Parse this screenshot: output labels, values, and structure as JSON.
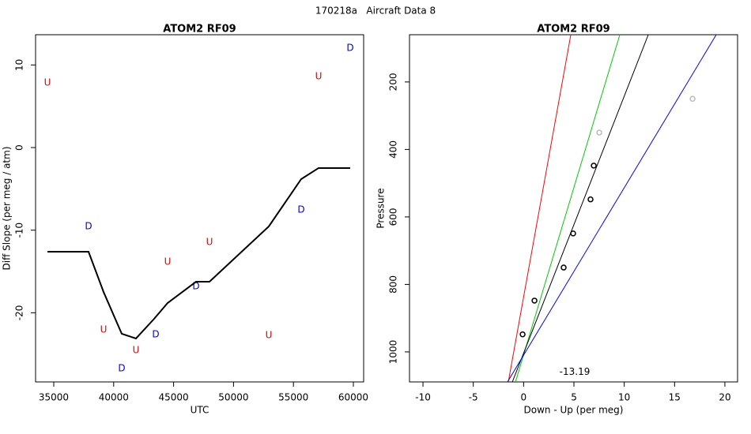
{
  "page_title": "170218a   Aircraft Data 8",
  "chart_data": [
    {
      "type": "scatter",
      "title": "ATOM2 RF09",
      "x_label": "UTC",
      "y_label": "Diff Slope (per meg / atm)",
      "xlim": [
        33483,
        60858
      ],
      "ylim": [
        -28.37,
        13.66
      ],
      "xticks": [
        35000,
        40000,
        45000,
        50000,
        55000,
        60000
      ],
      "yticks": [
        -20,
        -10,
        0,
        10
      ],
      "series": [
        {
          "mode": "text",
          "marker": "U",
          "color": "#e00000",
          "x": [
            34472,
            39156,
            41860,
            44499,
            47995,
            52942,
            57098
          ],
          "values": [
            7.83,
            -22.06,
            -24.55,
            -13.85,
            -11.46,
            -22.73,
            8.6
          ]
        },
        {
          "mode": "text",
          "marker": "D",
          "color": "#0000e0",
          "x": [
            37902,
            40673,
            43509,
            46873,
            55646,
            59736
          ],
          "values": [
            -9.55,
            -26.74,
            -22.64,
            -16.81,
            -7.55,
            12.03
          ]
        },
        {
          "mode": "line",
          "color": "#000000",
          "x": [
            34472,
            37902,
            39156,
            40673,
            41860,
            43377,
            44499,
            46873,
            47995,
            52942,
            55646,
            57098,
            59736
          ],
          "values": [
            -12.61,
            -12.61,
            -17.48,
            -22.54,
            -23.11,
            -20.73,
            -18.82,
            -16.24,
            -16.24,
            -9.55,
            -3.82,
            -2.48,
            -2.48
          ]
        }
      ]
    },
    {
      "type": "scatter",
      "title": "ATOM2 RF09",
      "x_label": "Down - Up (per meg)",
      "y_label": "Pressure",
      "xlim": [
        -11.34,
        21.26
      ],
      "ylim": [
        1089,
        60
      ],
      "xticks": [
        -10,
        -5,
        0,
        5,
        10,
        15,
        20
      ],
      "yticks": [
        200,
        400,
        600,
        800,
        1000
      ],
      "series": [
        {
          "mode": "points",
          "color": "#000000",
          "x": [
            -0.1,
            1.08,
            3.98,
            4.92,
            6.65,
            6.97
          ],
          "values": [
            948,
            848,
            750,
            649,
            548,
            448
          ]
        },
        {
          "mode": "points",
          "color": "#bbbbbb",
          "x": [
            7.52,
            16.79
          ],
          "values": [
            350,
            250
          ]
        },
        {
          "mode": "line",
          "color": "#ff0000",
          "x": [
            -1.52,
            4.69
          ],
          "values": [
            1089,
            60
          ]
        },
        {
          "mode": "line",
          "color": "#00cc00",
          "x": [
            -0.81,
            9.56
          ],
          "values": [
            1089,
            60
          ]
        },
        {
          "mode": "line",
          "color": "#000000",
          "x": [
            -1.12,
            12.39
          ],
          "values": [
            1089,
            60
          ]
        },
        {
          "mode": "line",
          "color": "#0000ff",
          "x": [
            -1.6,
            19.14
          ],
          "values": [
            1089,
            60
          ]
        }
      ],
      "annotation": {
        "text": "-13.19",
        "x": 5.08,
        "y": 1060
      }
    }
  ]
}
